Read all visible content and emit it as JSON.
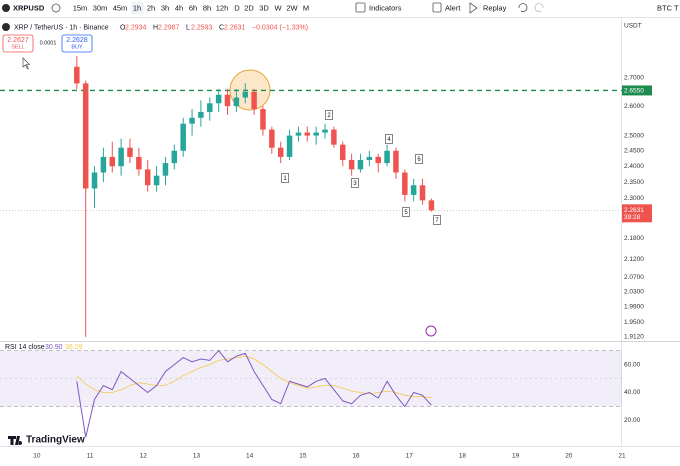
{
  "toolbar": {
    "symbol": "XRPUSD",
    "intervals": [
      "15m",
      "30m",
      "45m",
      "1h",
      "2h",
      "3h",
      "4h",
      "6h",
      "8h",
      "12h",
      "D",
      "2D",
      "3D",
      "W",
      "2W",
      "M"
    ],
    "indicators": "Indicators",
    "alert": "Alert",
    "replay": "Replay",
    "compare": "BTC T"
  },
  "legend": {
    "title": "XRP / TetherUS · 1h · Binance",
    "letters": [
      "O",
      "H",
      "L",
      "C"
    ],
    "change": "−0.0304 (−1.33%)"
  },
  "trade": {
    "sell_price": "2.2627",
    "sell": "SELL",
    "spread": "0.0001",
    "buy_price": "2.2628",
    "buy": "BUY"
  },
  "countdown": "39:28",
  "branding": "TradingView",
  "chart_data": [
    {
      "type": "candlestick",
      "x": [
        10.75,
        10.917,
        11.083,
        11.25,
        11.417,
        11.583,
        11.75,
        11.917,
        12.083,
        12.25,
        12.417,
        12.583,
        12.75,
        12.917,
        13.083,
        13.25,
        13.417,
        13.583,
        13.75,
        13.917,
        14.083,
        14.25,
        14.417,
        14.583,
        14.75,
        14.917,
        15.083,
        15.25,
        15.417,
        15.583,
        15.75,
        15.917,
        16.083,
        16.25,
        16.417,
        16.583,
        16.75,
        16.917,
        17.083,
        17.25,
        17.417
      ],
      "open": [
        2.74,
        2.68,
        2.33,
        2.38,
        2.43,
        2.4,
        2.46,
        2.43,
        2.39,
        2.34,
        2.37,
        2.41,
        2.45,
        2.54,
        2.56,
        2.58,
        2.61,
        2.64,
        2.6,
        2.63,
        2.65,
        2.59,
        2.52,
        2.46,
        2.43,
        2.5,
        2.51,
        2.5,
        2.51,
        2.52,
        2.47,
        2.42,
        2.39,
        2.42,
        2.43,
        2.41,
        2.45,
        2.38,
        2.31,
        2.34,
        2.2934
      ],
      "high": [
        2.78,
        2.69,
        2.4,
        2.46,
        2.48,
        2.49,
        2.49,
        2.46,
        2.42,
        2.4,
        2.43,
        2.47,
        2.56,
        2.59,
        2.62,
        2.63,
        2.66,
        2.66,
        2.66,
        2.68,
        2.66,
        2.6,
        2.53,
        2.48,
        2.52,
        2.53,
        2.53,
        2.53,
        2.54,
        2.53,
        2.48,
        2.44,
        2.44,
        2.45,
        2.44,
        2.47,
        2.46,
        2.39,
        2.36,
        2.36,
        2.2987
      ],
      "low": [
        2.66,
        1.912,
        2.27,
        2.35,
        2.38,
        2.37,
        2.41,
        2.37,
        2.32,
        2.32,
        2.34,
        2.39,
        2.43,
        2.5,
        2.53,
        2.55,
        2.58,
        2.57,
        2.58,
        2.61,
        2.57,
        2.5,
        2.44,
        2.41,
        2.42,
        2.48,
        2.48,
        2.47,
        2.49,
        2.46,
        2.4,
        2.37,
        2.38,
        2.4,
        2.38,
        2.4,
        2.36,
        2.29,
        2.29,
        2.28,
        2.2593
      ],
      "close": [
        2.68,
        2.33,
        2.38,
        2.43,
        2.4,
        2.46,
        2.43,
        2.39,
        2.34,
        2.37,
        2.41,
        2.45,
        2.54,
        2.56,
        2.58,
        2.61,
        2.64,
        2.6,
        2.63,
        2.65,
        2.59,
        2.52,
        2.46,
        2.43,
        2.5,
        2.51,
        2.5,
        2.51,
        2.52,
        2.47,
        2.42,
        2.39,
        2.42,
        2.43,
        2.41,
        2.45,
        2.38,
        2.31,
        2.34,
        2.2934,
        2.2631
      ],
      "up_color": "#26a69a",
      "down_color": "#ef5350",
      "xlim": [
        9.306,
        21.0
      ],
      "xticks": [
        10,
        11,
        12,
        13,
        14,
        15,
        16,
        17,
        18,
        19,
        20,
        21
      ],
      "ylim": [
        1.904,
        2.924
      ],
      "log_scale": true,
      "y_unit": "USDT",
      "yticks": [
        {
          "value": 2.7,
          "label": "2.7000"
        },
        {
          "value": 2.6,
          "label": "2.6000"
        },
        {
          "value": 2.5,
          "label": "2.5000"
        },
        {
          "value": 2.45,
          "label": "2.4500"
        },
        {
          "value": 2.4,
          "label": "2.4000"
        },
        {
          "value": 2.35,
          "label": "2.3500"
        },
        {
          "value": 2.3,
          "label": "2.3000"
        },
        {
          "value": 2.18,
          "label": "2.1800"
        },
        {
          "value": 2.12,
          "label": "2.1200"
        },
        {
          "value": 2.07,
          "label": "2.0700"
        },
        {
          "value": 2.03,
          "label": "2.0300"
        },
        {
          "value": 1.99,
          "label": "1.9900"
        },
        {
          "value": 1.95,
          "label": "1.9500"
        },
        {
          "value": 1.912,
          "label": "1.9120"
        }
      ],
      "hline": {
        "value": 2.655,
        "label": "2.6550",
        "color": "#1e8c4e"
      },
      "annotations": [
        "1",
        "2",
        "3",
        "4",
        "5",
        "6",
        "7"
      ]
    },
    {
      "type": "line",
      "title": "RSI 14 close",
      "last_labels": [
        "30.90",
        "36.29"
      ],
      "x": [
        10.75,
        10.917,
        11.083,
        11.25,
        11.417,
        11.583,
        11.75,
        11.917,
        12.083,
        12.25,
        12.417,
        12.583,
        12.75,
        12.917,
        13.083,
        13.25,
        13.417,
        13.583,
        13.75,
        13.917,
        14.083,
        14.25,
        14.417,
        14.583,
        14.75,
        14.917,
        15.083,
        15.25,
        15.417,
        15.583,
        15.75,
        15.917,
        16.083,
        16.25,
        16.417,
        16.583,
        16.75,
        16.917,
        17.083,
        17.25,
        17.417
      ],
      "series": [
        {
          "color": "#7e57c2",
          "values": [
            48,
            8,
            35,
            45,
            42,
            55,
            50,
            45,
            40,
            45,
            55,
            60,
            65,
            62,
            64,
            63,
            70,
            62,
            66,
            68,
            55,
            45,
            35,
            32,
            48,
            46,
            44,
            48,
            50,
            42,
            34,
            32,
            38,
            40,
            36,
            48,
            38,
            30,
            40,
            38,
            30.9
          ]
        },
        {
          "color": "#f2c94c",
          "values": [
            52,
            46,
            42,
            40,
            40,
            42,
            45,
            47,
            46,
            45,
            45,
            48,
            52,
            55,
            58,
            60,
            63,
            64,
            65,
            66,
            64,
            60,
            55,
            50,
            47,
            45,
            43,
            44,
            45,
            45,
            43,
            41,
            40,
            39,
            40,
            41,
            40,
            38,
            37,
            37,
            36.29
          ]
        }
      ],
      "xlim": [
        9.306,
        21.0
      ],
      "ylim": [
        6,
        74
      ],
      "yticks": [
        {
          "value": 60,
          "label": "60.00"
        },
        {
          "value": 40,
          "label": "40.00"
        },
        {
          "value": 20,
          "label": "20.00"
        }
      ],
      "band": [
        30,
        70
      ],
      "midline": 50
    }
  ]
}
